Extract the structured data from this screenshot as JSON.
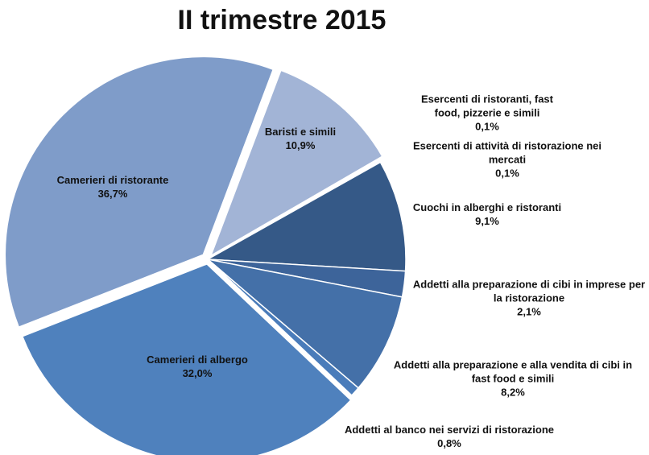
{
  "chart_data": {
    "type": "pie",
    "title": "II trimestre 2015",
    "categories": [
      "Baristi e simili",
      "Esercenti di ristoranti, fast food, pizzerie e simili",
      "Esercenti di attività di ristorazione nei mercati",
      "Cuochi in alberghi e ristoranti",
      "Addetti alla preparazione di cibi in imprese per la ristorazione",
      "Addetti alla preparazione e alla vendita di cibi in fast food e simili",
      "Addetti al banco nei servizi di ristorazione",
      "Camerieri di albergo",
      "Camerieri di ristorante"
    ],
    "values": [
      10.9,
      0.1,
      0.1,
      9.1,
      2.1,
      8.2,
      0.8,
      32.0,
      36.7
    ],
    "value_labels": [
      "10,9%",
      "0,1%",
      "0,1%",
      "9,1%",
      "2,1%",
      "8,2%",
      "0,8%",
      "32,0%",
      "36,7%"
    ],
    "colors": [
      "#a2b4d6",
      "#b8c6e0",
      "#b8c6e0",
      "#355987",
      "#3d649a",
      "#4470a8",
      "#4a7cba",
      "#4f81bd",
      "#7f9cc9"
    ]
  }
}
